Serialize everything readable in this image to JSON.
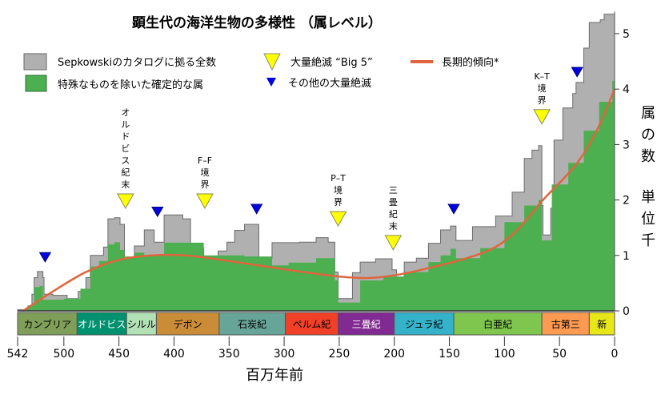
{
  "chart_data": {
    "type": "area",
    "title": "顕生代の海洋生物の多様性 （属レベル）",
    "xlabel": "百万年前",
    "ylabel": [
      "属",
      "の",
      "数",
      "単",
      "位",
      "千"
    ],
    "xlim": [
      542,
      0
    ],
    "ylim": [
      0,
      5.5
    ],
    "x_ticks": [
      542,
      500,
      450,
      400,
      350,
      300,
      250,
      200,
      150,
      100,
      50,
      0
    ],
    "y_ticks": [
      0,
      1,
      2,
      3,
      4,
      5
    ],
    "legend": {
      "placement": "top",
      "total": "Sepkowskiのカタログに拠る全数",
      "resolved": "特殊なものを除いた確定的な属",
      "big5": "大量絶滅 “Big 5”",
      "other": "その他の大量絶滅",
      "trend": "長期的傾向*"
    },
    "colors": {
      "total": "#b0b0b0",
      "resolved": "#4caf50",
      "trend": "#e0653f",
      "big5": "#ffff00",
      "other": "#0000e0"
    },
    "series": [
      {
        "name": "Sepkowskiのカタログに拠る全数",
        "points": [
          [
            542,
            0.02
          ],
          [
            533,
            0.05
          ],
          [
            529,
            0.3
          ],
          [
            527,
            0.6
          ],
          [
            524,
            0.71
          ],
          [
            519,
            0.6
          ],
          [
            518,
            0.3
          ],
          [
            510,
            0.28
          ],
          [
            497,
            0.22
          ],
          [
            487,
            0.35
          ],
          [
            480,
            0.6
          ],
          [
            476,
            1.0
          ],
          [
            464,
            1.15
          ],
          [
            460,
            1.66
          ],
          [
            454,
            1.68
          ],
          [
            449,
            1.56
          ],
          [
            445,
            0.8
          ],
          [
            436,
            1.17
          ],
          [
            427,
            1.46
          ],
          [
            418,
            1.24
          ],
          [
            409,
            1.73
          ],
          [
            392,
            1.66
          ],
          [
            385,
            1.13
          ],
          [
            373,
            0.91
          ],
          [
            365,
            0.66
          ],
          [
            360,
            1.08
          ],
          [
            352,
            1.24
          ],
          [
            345,
            1.45
          ],
          [
            336,
            1.56
          ],
          [
            325,
            1.56
          ],
          [
            323,
            0.95
          ],
          [
            311,
            1.23
          ],
          [
            296,
            1.23
          ],
          [
            286,
            1.24
          ],
          [
            271,
            1.32
          ],
          [
            260,
            1.24
          ],
          [
            254,
            0.7
          ],
          [
            251,
            0.22
          ],
          [
            238,
            0.69
          ],
          [
            231,
            0.88
          ],
          [
            217,
            0.94
          ],
          [
            202,
            0.74
          ],
          [
            198,
            0.5
          ],
          [
            191,
            0.88
          ],
          [
            180,
            0.95
          ],
          [
            169,
            1.22
          ],
          [
            158,
            1.46
          ],
          [
            149,
            1.53
          ],
          [
            144,
            1.27
          ],
          [
            129,
            1.52
          ],
          [
            108,
            1.71
          ],
          [
            93,
            2.14
          ],
          [
            82,
            2.75
          ],
          [
            75,
            2.9
          ],
          [
            69,
            2.98
          ],
          [
            66,
            1.9
          ],
          [
            65,
            1.37
          ],
          [
            58,
            1.85
          ],
          [
            55,
            3.08
          ],
          [
            47,
            3.66
          ],
          [
            38,
            3.92
          ],
          [
            35,
            4.12
          ],
          [
            28,
            4.74
          ],
          [
            23,
            5.2
          ],
          [
            13,
            5.25
          ],
          [
            9.5,
            5.35
          ],
          [
            0,
            5.4
          ]
        ]
      },
      {
        "name": "特殊なものを除いた確定的な属",
        "points": [
          [
            542,
            0
          ],
          [
            533,
            0.1
          ],
          [
            527,
            0.43
          ],
          [
            522,
            0.45
          ],
          [
            519,
            0.2
          ],
          [
            500,
            0.22
          ],
          [
            485,
            0.4
          ],
          [
            476,
            0.8
          ],
          [
            468,
            0.9
          ],
          [
            460,
            1.2
          ],
          [
            454,
            1.24
          ],
          [
            449,
            1.1
          ],
          [
            445,
            0.98
          ],
          [
            436,
            1.05
          ],
          [
            427,
            1.0
          ],
          [
            418,
            1.0
          ],
          [
            409,
            1.23
          ],
          [
            392,
            1.23
          ],
          [
            373,
            1.0
          ],
          [
            336,
            0.98
          ],
          [
            325,
            0.98
          ],
          [
            311,
            0.82
          ],
          [
            296,
            0.87
          ],
          [
            271,
            0.95
          ],
          [
            260,
            0.95
          ],
          [
            254,
            0.55
          ],
          [
            251,
            0.15
          ],
          [
            231,
            0.55
          ],
          [
            210,
            0.62
          ],
          [
            191,
            0.7
          ],
          [
            169,
            0.88
          ],
          [
            158,
            1.0
          ],
          [
            149,
            1.12
          ],
          [
            144,
            0.95
          ],
          [
            122,
            1.13
          ],
          [
            100,
            1.6
          ],
          [
            82,
            1.9
          ],
          [
            69,
            2.0
          ],
          [
            66,
            1.27
          ],
          [
            57,
            2.28
          ],
          [
            42,
            2.67
          ],
          [
            28,
            3.25
          ],
          [
            14,
            3.77
          ],
          [
            2,
            4.15
          ],
          [
            0,
            4.2
          ]
        ]
      },
      {
        "name": "長期的傾向*",
        "points": [
          [
            537,
            0
          ],
          [
            510,
            0.35
          ],
          [
            480,
            0.7
          ],
          [
            450,
            0.92
          ],
          [
            420,
            1.0
          ],
          [
            390,
            1.0
          ],
          [
            350,
            0.9
          ],
          [
            300,
            0.75
          ],
          [
            250,
            0.62
          ],
          [
            217,
            0.6
          ],
          [
            180,
            0.72
          ],
          [
            122,
            1.03
          ],
          [
            93,
            1.37
          ],
          [
            65,
            2.0
          ],
          [
            35,
            2.64
          ],
          [
            15,
            3.3
          ],
          [
            0,
            4.0
          ]
        ]
      }
    ],
    "big5_events": [
      {
        "age": 444,
        "level": 1.85,
        "label": [
          "オ",
          "ル",
          "ド",
          "ビ",
          "ス",
          "紀",
          "末"
        ]
      },
      {
        "age": 372,
        "level": 1.85,
        "label": [
          "F–F",
          "境",
          "界"
        ]
      },
      {
        "age": 251,
        "level": 1.53,
        "label": [
          "P–T",
          "境",
          "界"
        ]
      },
      {
        "age": 201,
        "level": 1.1,
        "label": [
          "三",
          "畳",
          "紀",
          "末"
        ]
      },
      {
        "age": 66,
        "level": 3.37,
        "label": [
          "K–T",
          "境",
          "界"
        ]
      }
    ],
    "other_events": [
      {
        "age": 517,
        "level": 0.88
      },
      {
        "age": 415,
        "level": 1.7
      },
      {
        "age": 325,
        "level": 1.75
      },
      {
        "age": 146,
        "level": 1.75
      },
      {
        "age": 34,
        "level": 4.22
      }
    ],
    "periods": [
      {
        "name": "カンブリア",
        "start": 542,
        "end": 488,
        "color": "#7f9f59",
        "text": "#000"
      },
      {
        "name": "オルドビス",
        "start": 488,
        "end": 443,
        "color": "#009270",
        "text": "#fff"
      },
      {
        "name": "シルル",
        "start": 443,
        "end": 416,
        "color": "#b3e1b6",
        "text": "#000"
      },
      {
        "name": "デボン",
        "start": 416,
        "end": 359,
        "color": "#cb8c37",
        "text": "#000"
      },
      {
        "name": "石炭紀",
        "start": 359,
        "end": 299,
        "color": "#67a599",
        "text": "#000"
      },
      {
        "name": "ペルム紀",
        "start": 299,
        "end": 251,
        "color": "#f04028",
        "text": "#000"
      },
      {
        "name": "三畳紀",
        "start": 251,
        "end": 200,
        "color": "#812b92",
        "text": "#fff"
      },
      {
        "name": "ジュラ紀",
        "start": 200,
        "end": 146,
        "color": "#34b2c9",
        "text": "#000"
      },
      {
        "name": "白亜紀",
        "start": 146,
        "end": 66,
        "color": "#7fc64e",
        "text": "#000"
      },
      {
        "name": "古第三",
        "start": 66,
        "end": 23,
        "color": "#fd9a52",
        "text": "#000"
      },
      {
        "name": "新",
        "start": 23,
        "end": 0,
        "color": "#e6e619",
        "text": "#000"
      }
    ]
  }
}
